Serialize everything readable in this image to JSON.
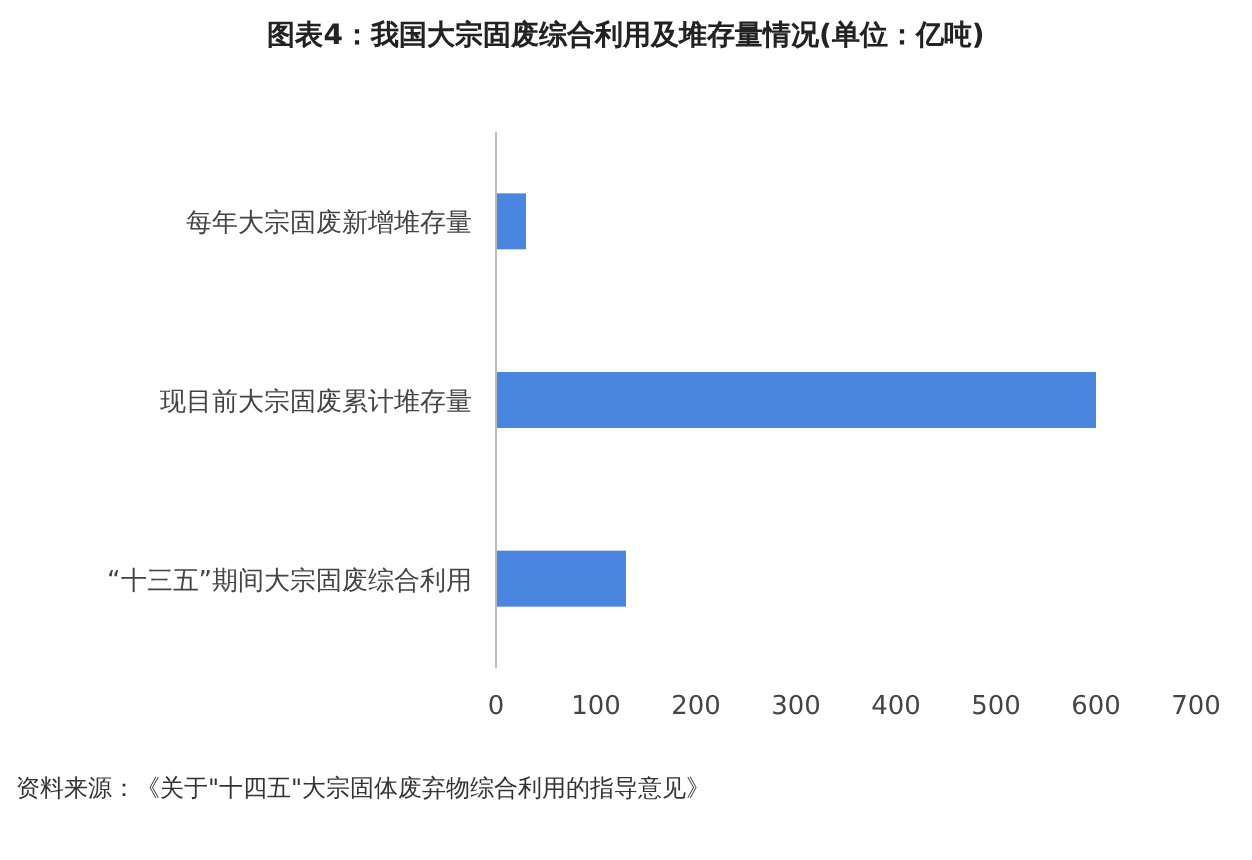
{
  "chart_data": {
    "type": "bar",
    "orientation": "horizontal",
    "title": "图表4：我国大宗固废综合利用及堆存量情况(单位：亿吨)",
    "categories": [
      "每年大宗固废新增堆存量",
      "现目前大宗固废累计堆存量",
      "“十三五”期间大宗固废综合利用"
    ],
    "values": [
      30,
      600,
      130
    ],
    "color": "#4a86e0",
    "xlim": [
      0,
      700
    ],
    "xticks": [
      0,
      100,
      200,
      300,
      400,
      500,
      600,
      700
    ],
    "annotations": [
      "资料来源：《关于\"十四五\"大宗固体废弃物综合利用的指导意见》"
    ]
  }
}
